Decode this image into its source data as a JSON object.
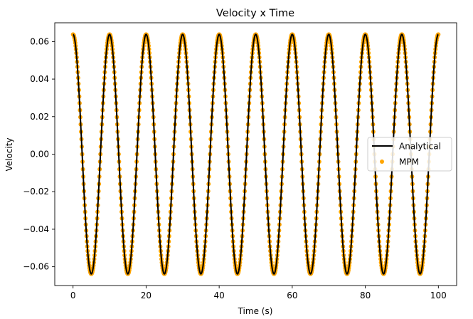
{
  "chart_data": {
    "type": "line",
    "title": "Velocity x Time",
    "xlabel": "Time (s)",
    "ylabel": "Velocity",
    "xlim": [
      -5,
      105
    ],
    "ylim": [
      -0.07,
      0.07
    ],
    "xticks": [
      0,
      20,
      40,
      60,
      80,
      100
    ],
    "xtick_labels": [
      "0",
      "20",
      "40",
      "60",
      "80",
      "100"
    ],
    "yticks": [
      -0.06,
      -0.04,
      -0.02,
      0.0,
      0.02,
      0.04,
      0.06
    ],
    "ytick_labels": [
      "−0.06",
      "−0.04",
      "−0.02",
      "0.00",
      "0.02",
      "0.04",
      "0.06"
    ],
    "grid": false,
    "legend_position": "center-right",
    "series": [
      {
        "name": "Analytical",
        "kind": "line",
        "color": "#000000",
        "function": "amplitude * cos(2*pi*t/period)",
        "amplitude": 0.0638,
        "period": 10,
        "t_range": [
          0,
          100
        ]
      },
      {
        "name": "MPM",
        "kind": "scatter",
        "color": "#ffa500",
        "function": "amplitude * cos(2*pi*t/period)",
        "amplitude": 0.0638,
        "period": 10,
        "t_range": [
          0,
          100
        ]
      }
    ]
  }
}
